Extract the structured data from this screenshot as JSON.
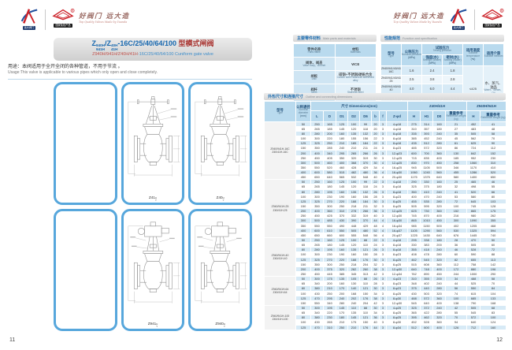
{
  "brand": {
    "logo1_label": "远大阀门",
    "logo2_label": "国家免检产品",
    "calligraphy": "好阀门 远大造",
    "tagline": "Top Quality Valves Made by Yuanda"
  },
  "page_left": {
    "page_number": "11",
    "title": {
      "z1": "Z",
      "stack1_top": "940H",
      "stack1_bot": "941H",
      "slash": "/",
      "z2": "Z",
      "stack2_top": "40H",
      "stack2_bot": "41H",
      "suffix_code": "-16C/25/40/64/100",
      "suffix_cn": " 型模式闸阀",
      "subtitle_red": "Z940H/941H/Z40H/41H",
      "subtitle_blue": "-16C/25/40/64/100 Cuniform gate valve"
    },
    "usage_cn": "用途：本阀适用于全开全闭的各种管道，不用于节流 。",
    "usage_en": "Usage:This valve is applicable to various pipes which only open and close completely.",
    "figures": [
      {
        "kind": "photo-manual"
      },
      {
        "kind": "drawing-manual",
        "caption_base": "Z41",
        "caption_sup": "H",
        "caption_sub": "Y"
      },
      {
        "kind": "drawing-manual",
        "caption_base": "Z40",
        "caption_sup": "H",
        "caption_sub": "Y"
      },
      {
        "kind": "photo-electric"
      },
      {
        "kind": "drawing-electric",
        "caption_base": "Z941",
        "caption_sup": "H",
        "caption_sub": "Y"
      },
      {
        "kind": "drawing-electric",
        "caption_base": "Z940",
        "caption_sup": "H",
        "caption_sub": "Y"
      }
    ]
  },
  "page_right": {
    "page_number": "12",
    "materials_table": {
      "title_cn": "主要零件材料",
      "title_en": "Main parts and materials",
      "head": {
        "part_cn": "零件名称",
        "part_en": "Parts name",
        "mat_cn": "材料",
        "mat_en": "Materials"
      },
      "rows": [
        {
          "part_cn": "阀体、阀盖",
          "part_en": "Valve body、Bonnet",
          "mat_cn": "WCB",
          "mat_en": ""
        },
        {
          "part_cn": "闸板",
          "part_en": "Disc",
          "mat_cn": "碳钢+不锈钢/硬质合金",
          "mat_en": "Carbon steel+stainless steel/hard alloy"
        },
        {
          "part_cn": "阀杆",
          "part_en": "Stem",
          "mat_cn": "不锈钢",
          "mat_en": "Stainless steel"
        },
        {
          "part_cn": "阀杆螺母",
          "part_en": "Yoke nut",
          "mat_cn": "铜",
          "mat_en": "Brass"
        }
      ]
    },
    "performance_table": {
      "title_cn": "性能规范",
      "title_en": "Function and specification",
      "head": {
        "type_cn": "型号",
        "type_en": "Type",
        "pn_cn": "公称压力",
        "pn_en": "Nominal pressure",
        "pn_unit": "(MPa)",
        "test_cn": "试验压力",
        "test_en": "Testing pressure",
        "strength_cn": "强度(水)",
        "strength_en": "Strength (Water)",
        "strength_unit": "(MPa)",
        "seal_cn": "密封(水)",
        "seal_en": "Sealing (Water)",
        "seal_unit": "(MPa)",
        "temp_cn": "适用温度",
        "temp_en": "Suitable temperature",
        "temp_unit": "(℃)",
        "medium_cn": "适用介质",
        "medium_en": "Suitable medium"
      },
      "rows": [
        {
          "type": "Z940/941/40/41H-16C",
          "pn": "1.6",
          "strength": "2.4",
          "seal": "1.8"
        },
        {
          "type": "Z940/941/40/41H-25",
          "pn": "2.5",
          "strength": "3.8",
          "seal": "2.8"
        },
        {
          "type": "Z940/941/40/41H-40",
          "pn": "4.0",
          "strength": "6.0",
          "seal": "4.4"
        },
        {
          "type": "Z940/941/40/41H-64",
          "pn": "6.4",
          "strength": "9.6",
          "seal": "7.0"
        },
        {
          "type": "Z940/941/40/41H-100",
          "pn": "10.0",
          "strength": "15.0",
          "seal": "11.0"
        }
      ],
      "temp_value": "≤425",
      "medium_value_cn": "水、蒸汽、油品",
      "medium_value_en": "Water、Steam、Oil"
    },
    "dimensions_table": {
      "title_cn": "外形尺寸和连接尺寸",
      "title_en": "Outline and connecting dimensions",
      "head": {
        "type_cn": "型号",
        "type_en": "Type",
        "dn_cn": "公称通径",
        "dn_en": "Nominal diameter",
        "dn_unit": "(mm)",
        "dims_cn": "尺寸",
        "dims_en": "Dimensions(mm)",
        "dim_cols": [
          "L",
          "D",
          "D1",
          "D2",
          "D6",
          "b",
          "f",
          "Z-φd"
        ],
        "manual_group": "Z40H/41H",
        "manual_cols": [
          "H",
          "H1",
          "D0"
        ],
        "electric_group": "Z940H/941H",
        "electric_cols": [
          "H"
        ],
        "weight_cn": "重量参考",
        "weight_en": "Reference weight (kg)"
      },
      "groups": [
        {
          "type1": "Z940/941H-16C",
          "type2": "Z40/41H-16C",
          "rows": [
            [
              50,
              250,
              165,
              125,
              100,
              99,
              20,
              3,
              "4-φ18",
              275,
              314,
              160,
              21,
              452,
              41
            ],
            [
              65,
              265,
              185,
              145,
              120,
              118,
              20,
              3,
              "4-φ18",
              310,
              357,
              180,
              27,
              483,
              48
            ],
            [
              80,
              280,
              200,
              160,
              135,
              132,
              20,
              3,
              "8-φ18",
              335,
              393,
              240,
              35,
              505,
              58
            ],
            [
              100,
              300,
              220,
              180,
              155,
              156,
              22,
              3,
              "8-φ18",
              385,
              452,
              240,
              45,
              562,
              70
            ],
            [
              125,
              325,
              250,
              210,
              185,
              184,
              22,
              3,
              "8-φ18",
              435,
              512,
              280,
              61,
              625,
              90
            ],
            [
              150,
              350,
              285,
              240,
              210,
              211,
              24,
              3,
              "8-φ23",
              485,
              572,
              320,
              86,
              724,
              112
            ],
            [
              200,
              400,
              340,
              295,
              265,
              266,
              26,
              3,
              "12-φ23",
              600,
              700,
              360,
              130,
              842,
              152
            ],
            [
              250,
              450,
              405,
              350,
              320,
              319,
              30,
              3,
              "12-φ25",
              715,
              835,
              400,
              185,
              952,
              230
            ],
            [
              300,
              500,
              460,
              400,
              368,
              370,
              30,
              4,
              "12-φ25",
              830,
              970,
              450,
              258,
              1060,
              310
            ],
            [
              350,
              550,
              520,
              460,
              428,
              429,
              34,
              4,
              "16-φ25",
              945,
              1105,
              500,
              346,
              1170,
              410
            ],
            [
              400,
              600,
              580,
              515,
              482,
              480,
              36,
              4,
              "16-φ30",
              1060,
              1240,
              560,
              455,
              1286,
              520
            ],
            [
              450,
              650,
              640,
              565,
              532,
              548,
              40,
              4,
              "20-φ30",
              1175,
              1375,
              640,
              580,
              1400,
              650
            ]
          ]
        },
        {
          "type1": "Z940/941H-25",
          "type2": "Z40/41H-25",
          "rows": [
            [
              50,
              250,
              160,
              125,
              100,
              99,
              22,
              3,
              "4-φ18",
              290,
              330,
              160,
              25,
              465,
              46
            ],
            [
              65,
              265,
              180,
              145,
              120,
              118,
              24,
              3,
              "8-φ18",
              325,
              375,
              180,
              32,
              498,
              55
            ],
            [
              80,
              280,
              195,
              160,
              135,
              132,
              26,
              3,
              "8-φ18",
              350,
              410,
              240,
              41,
              520,
              66
            ],
            [
              100,
              300,
              230,
              190,
              160,
              156,
              28,
              3,
              "8-φ23",
              400,
              470,
              240,
              53,
              580,
              80
            ],
            [
              125,
              325,
              270,
              220,
              188,
              184,
              30,
              3,
              "8-φ25",
              455,
              535,
              280,
              72,
              645,
              103
            ],
            [
              150,
              350,
              300,
              250,
              218,
              211,
              32,
              3,
              "8-φ25",
              505,
              595,
              320,
              100,
              745,
              128
            ],
            [
              200,
              400,
              360,
              310,
              278,
              266,
              36,
              3,
              "12-φ25",
              625,
              730,
              360,
              152,
              865,
              175
            ],
            [
              250,
              450,
              425,
              370,
              332,
              319,
              40,
              3,
              "12-φ30",
              745,
              870,
              400,
              216,
              980,
              262
            ],
            [
              300,
              500,
              485,
              430,
              390,
              370,
              44,
              4,
              "16-φ30",
              865,
              1010,
              450,
              300,
              1090,
              355
            ],
            [
              350,
              550,
              550,
              490,
              448,
              429,
              48,
              4,
              "16-φ34",
              985,
              1150,
              500,
              402,
              1205,
              468
            ],
            [
              400,
              600,
              610,
              550,
              505,
              480,
              52,
              4,
              "16-φ37",
              1105,
              1290,
              560,
              530,
              1325,
              594
            ],
            [
              450,
              650,
              660,
              600,
              555,
              548,
              56,
              4,
              "20-φ37",
              1225,
              1430,
              640,
              676,
              1445,
              740
            ]
          ]
        },
        {
          "type1": "Z940/941H-40",
          "type2": "Z40/41H-40",
          "rows": [
            [
              50,
              250,
              160,
              125,
              100,
              88,
              22,
              3,
              "4-φ18",
              295,
              338,
              180,
              28,
              470,
              50
            ],
            [
              65,
              265,
              180,
              145,
              120,
              110,
              24,
              3,
              "8-φ18",
              330,
              383,
              200,
              36,
              505,
              60
            ],
            [
              80,
              280,
              195,
              160,
              135,
              121,
              26,
              3,
              "8-φ18",
              355,
              418,
              240,
              46,
              528,
              72
            ],
            [
              100,
              300,
              230,
              190,
              160,
              150,
              28,
              3,
              "8-φ23",
              408,
              478,
              280,
              60,
              590,
              88
            ],
            [
              125,
              325,
              270,
              220,
              188,
              176,
              30,
              3,
              "8-φ25",
              462,
              545,
              320,
              82,
              655,
              113
            ],
            [
              150,
              350,
              300,
              250,
              218,
              204,
              32,
              3,
              "8-φ25",
              515,
              608,
              360,
              112,
              758,
              142
            ],
            [
              200,
              400,
              375,
              320,
              282,
              260,
              38,
              3,
              "12-φ30",
              640,
              748,
              400,
              172,
              880,
              196
            ],
            [
              250,
              450,
              445,
              385,
              345,
              313,
              42,
              3,
              "12-φ34",
              762,
              890,
              450,
              244,
              1000,
              290
            ]
          ]
        },
        {
          "type1": "Z940/941H-64",
          "type2": "Z40/41H-64",
          "rows": [
            [
              50,
              300,
              175,
              135,
              105,
              88,
              26,
              3,
              "4-φ23",
              310,
              355,
              200,
              34,
              488,
              58
            ],
            [
              65,
              340,
              200,
              160,
              130,
              110,
              28,
              3,
              "8-φ23",
              348,
              402,
              240,
              44,
              525,
              70
            ],
            [
              80,
              380,
              210,
              170,
              140,
              121,
              30,
              3,
              "8-φ23",
              375,
              440,
              280,
              56,
              550,
              84
            ],
            [
              100,
              430,
              250,
              200,
              168,
              150,
              34,
              3,
              "8-φ25",
              430,
              503,
              320,
              74,
              615,
              104
            ],
            [
              125,
              470,
              295,
              240,
              202,
              176,
              38,
              3,
              "8-φ30",
              488,
              572,
              360,
              100,
              685,
              133
            ],
            [
              150,
              550,
              340,
              280,
              240,
              204,
              42,
              3,
              "12-φ30",
              545,
              640,
              400,
              138,
              790,
              168
            ]
          ]
        },
        {
          "type1": "Z940/941H-100",
          "type2": "Z40/41H-100",
          "rows": [
            [
              50,
              300,
              195,
              145,
              110,
              88,
              30,
              3,
              "4-φ25",
              325,
              372,
              240,
              42,
              505,
              68
            ],
            [
              65,
              340,
              220,
              170,
              135,
              110,
              34,
              3,
              "8-φ25",
              365,
              422,
              280,
              55,
              545,
              83
            ],
            [
              80,
              380,
              230,
              180,
              145,
              121,
              36,
              3,
              "8-φ25",
              395,
              462,
              320,
              70,
              572,
              100
            ],
            [
              100,
              430,
              265,
              210,
              175,
              150,
              40,
              3,
              "8-φ30",
              452,
              528,
              360,
              94,
              640,
              124
            ],
            [
              125,
              470,
              310,
              250,
              210,
              176,
              44,
              3,
              "8-φ34",
              512,
              600,
              400,
              126,
              712,
              160
            ]
          ]
        }
      ]
    }
  }
}
